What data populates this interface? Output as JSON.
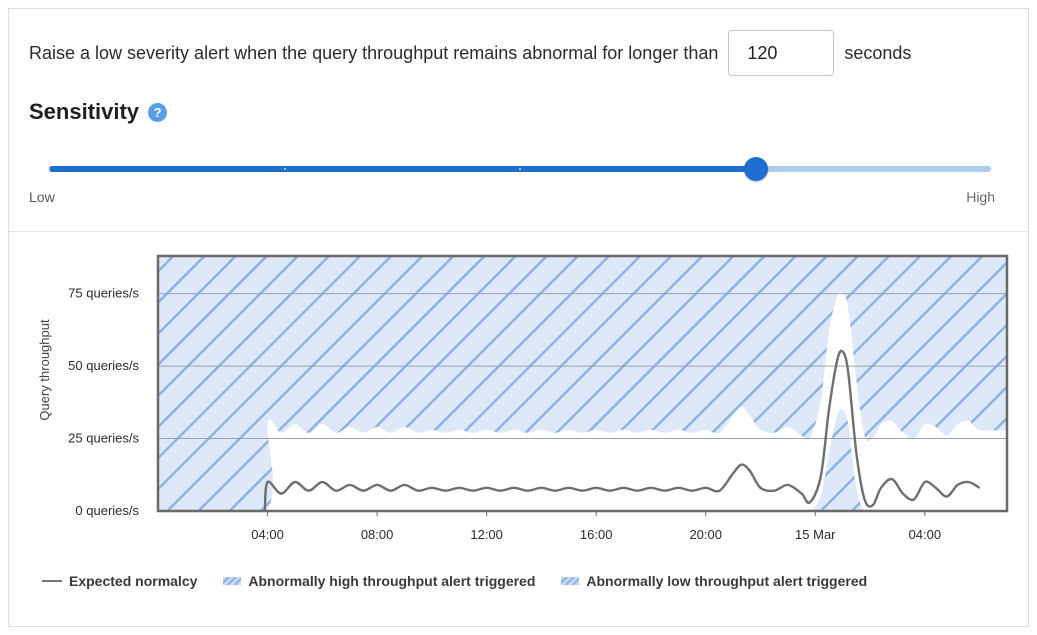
{
  "alert": {
    "prefix": "Raise a low severity alert when the query throughput remains abnormal for longer than",
    "duration_value": "120",
    "suffix": "seconds"
  },
  "sensitivity": {
    "title": "Sensitivity",
    "help_icon": "question-circle-icon",
    "low_label": "Low",
    "high_label": "High",
    "level_fraction": 0.75,
    "steps": 5
  },
  "legend": {
    "expected": "Expected normalcy",
    "high": "Abnormally high throughput alert triggered",
    "low": "Abnormally low throughput alert triggered"
  },
  "colors": {
    "accent": "#1f6fd1",
    "track": "#aecbee",
    "band_fill": "#dde8f8",
    "hatch": "#8fb1e6",
    "expected_line": "#6f6f6f"
  },
  "chart_data": {
    "type": "area",
    "ylabel": "Query throughput",
    "xlabel": "",
    "ylim": [
      0,
      88
    ],
    "yticks": [
      {
        "value": 0,
        "label": "0 queries/s"
      },
      {
        "value": 25,
        "label": "25 queries/s"
      },
      {
        "value": 50,
        "label": "50 queries/s"
      },
      {
        "value": 75,
        "label": "75 queries/s"
      }
    ],
    "xlim": [
      0,
      31
    ],
    "xticks": [
      {
        "value": 4,
        "label": "04:00"
      },
      {
        "value": 8,
        "label": "08:00"
      },
      {
        "value": 12,
        "label": "12:00"
      },
      {
        "value": 16,
        "label": "16:00"
      },
      {
        "value": 20,
        "label": "20:00"
      },
      {
        "value": 24,
        "label": "15 Mar"
      },
      {
        "value": 28,
        "label": "04:00"
      }
    ],
    "x_unit": "hours since 00:00 on 14 Mar",
    "series": [
      {
        "name": "Expected normalcy",
        "x": [
          3.9,
          4.0,
          4.5,
          5.0,
          5.5,
          6.0,
          6.5,
          7.0,
          7.5,
          8.0,
          8.5,
          9.0,
          9.5,
          10.0,
          10.5,
          11.0,
          11.5,
          12.0,
          12.5,
          13.0,
          13.5,
          14.0,
          14.5,
          15.0,
          15.5,
          16.0,
          16.5,
          17.0,
          17.5,
          18.0,
          18.5,
          19.0,
          19.5,
          20.0,
          20.5,
          21.0,
          21.3,
          21.6,
          22.0,
          22.5,
          23.0,
          23.5,
          23.8,
          24.2,
          24.5,
          24.8,
          25.0,
          25.2,
          25.5,
          25.8,
          26.1,
          26.4,
          26.8,
          27.2,
          27.6,
          28.0,
          28.4,
          28.8,
          29.2,
          29.6,
          30.0
        ],
        "y": [
          0,
          10,
          6,
          10,
          7,
          10,
          7,
          9,
          7,
          9,
          7,
          9,
          7,
          8,
          7,
          8,
          7,
          8,
          7,
          8,
          7,
          8,
          7,
          8,
          7,
          8,
          7,
          8,
          7,
          8,
          7,
          8,
          7,
          8,
          7,
          13,
          16,
          14,
          8,
          7,
          9,
          6,
          3,
          12,
          35,
          52,
          55,
          48,
          20,
          4,
          2,
          8,
          11,
          6,
          4,
          10,
          8,
          5,
          9,
          10,
          8
        ]
      }
    ],
    "band_upper": [
      0,
      30,
      27,
      30,
      27,
      30,
      27,
      29,
      27,
      29,
      27,
      29,
      27,
      28,
      27,
      28,
      27,
      28,
      27,
      28,
      27,
      28,
      27,
      28,
      27,
      28,
      27,
      28,
      27,
      28,
      27,
      28,
      27,
      28,
      27,
      33,
      36,
      33,
      28,
      27,
      29,
      26,
      25,
      38,
      62,
      74,
      75,
      70,
      45,
      26,
      25,
      30,
      31,
      27,
      25,
      30,
      29,
      26,
      30,
      31,
      28
    ],
    "band_lower": [
      0,
      0,
      0,
      0,
      0,
      0,
      0,
      0,
      0,
      0,
      0,
      0,
      0,
      0,
      0,
      0,
      0,
      0,
      0,
      0,
      0,
      0,
      0,
      0,
      0,
      0,
      0,
      0,
      0,
      0,
      0,
      0,
      0,
      0,
      0,
      0,
      0,
      0,
      0,
      0,
      0,
      0,
      0,
      5,
      20,
      33,
      35,
      30,
      8,
      0,
      0,
      0,
      0,
      0,
      0,
      0,
      0,
      0,
      0,
      0,
      0
    ],
    "grid": true,
    "legend_position": "bottom-left"
  }
}
